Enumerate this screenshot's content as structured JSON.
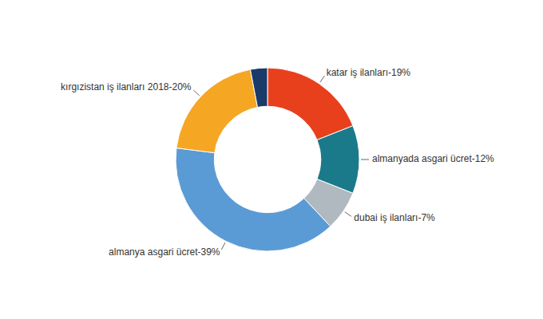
{
  "chart_data": {
    "type": "donut",
    "categories": [
      "katar iş ilanları-19%",
      "almanyada asgari ücret-12%",
      "dubai iş ilanları-7%",
      "almanya asgari ücret-39%",
      "kırgızistan iş ilanları 2018-20%",
      null
    ],
    "values": [
      19,
      12,
      7,
      39,
      20,
      3
    ],
    "colors": [
      "#E8401C",
      "#1A7A8A",
      "#B0B8C0",
      "#5B9BD5",
      "#F5A623",
      "#1A3A6A"
    ]
  }
}
